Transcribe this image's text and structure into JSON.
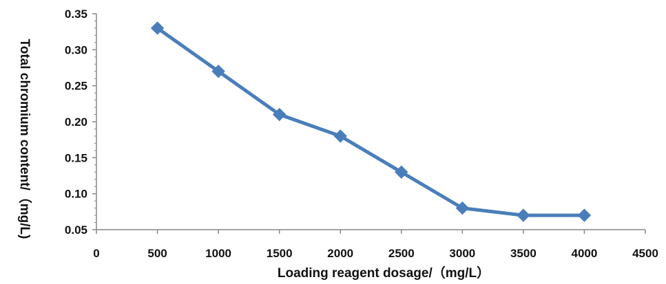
{
  "chart_data": {
    "type": "line",
    "title": "",
    "xlabel": "Loading reagent dosage/（mg/L）",
    "ylabel": "Total chromium content/（mg/L)",
    "x": [
      500,
      1000,
      1500,
      2000,
      2500,
      3000,
      3500,
      4000
    ],
    "series": [
      {
        "values": [
          0.33,
          0.27,
          0.21,
          0.18,
          0.13,
          0.08,
          0.07,
          0.07
        ],
        "color": "#4a7ebb",
        "marker": "diamond"
      }
    ],
    "xlim": [
      0,
      4500
    ],
    "ylim": [
      0.05,
      0.35
    ],
    "x_ticks": [
      "0",
      "500",
      "1000",
      "1500",
      "2000",
      "2500",
      "3000",
      "3500",
      "4000",
      "4500"
    ],
    "y_ticks": [
      "0.05",
      "0.10",
      "0.15",
      "0.20",
      "0.25",
      "0.30",
      "0.35"
    ],
    "grid": false,
    "legend": "none",
    "axis_color": "#868686"
  }
}
